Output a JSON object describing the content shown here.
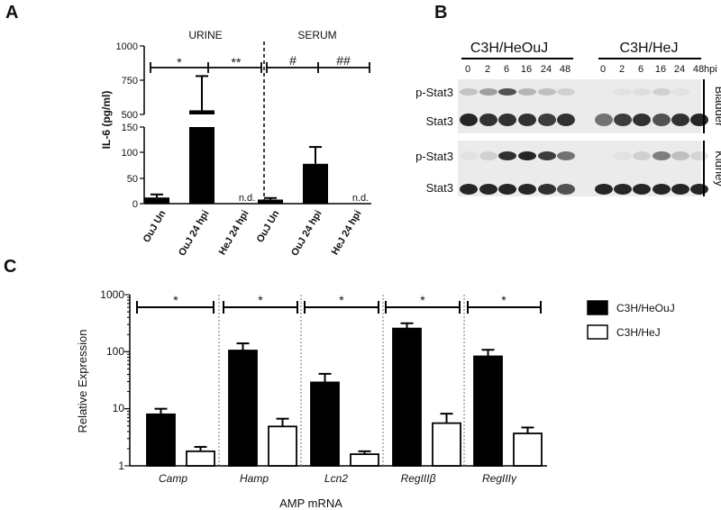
{
  "panels": {
    "a": "A",
    "b": "B",
    "c": "C"
  },
  "chart_data": [
    {
      "type": "bar",
      "panel": "A",
      "groups": [
        "URINE",
        "SERUM"
      ],
      "categories": [
        "OuJ Un",
        "OuJ 24 hpi",
        "HeJ 24 hpi",
        "OuJ Un",
        "OuJ 24 hpi",
        "HeJ 24 hpi"
      ],
      "values": [
        12,
        530,
        null,
        8,
        78,
        null
      ],
      "errors": [
        6,
        250,
        null,
        3,
        33,
        null
      ],
      "value_labels": [
        "",
        "",
        "n.d.",
        "",
        "",
        "n.d."
      ],
      "ylabel": "IL-6 (pg/ml)",
      "axis_break": [
        150,
        500
      ],
      "yticks_lower": [
        "0",
        "50",
        "100",
        "150"
      ],
      "yticks_upper": [
        "500",
        "750",
        "1000"
      ],
      "ylim": [
        0,
        1000
      ],
      "significance": [
        "*",
        "**",
        "#",
        "##"
      ]
    },
    {
      "type": "blot",
      "panel": "B",
      "strains": [
        "C3H/HeOuJ",
        "C3H/HeJ"
      ],
      "timepoints": [
        "0",
        "2",
        "6",
        "16",
        "24",
        "48"
      ],
      "unit": "hpi",
      "rows": [
        "p-Stat3",
        "Stat3",
        "p-Stat3",
        "Stat3"
      ],
      "tissues": [
        "Bladder",
        "Kidney"
      ]
    },
    {
      "type": "bar",
      "panel": "C",
      "categories": [
        "Camp",
        "Hamp",
        "Lcn2",
        "RegIIIβ",
        "RegIIIγ"
      ],
      "series": [
        {
          "name": "C3H/HeOuJ",
          "values": [
            8,
            105,
            29,
            255,
            83
          ],
          "errors": [
            2,
            35,
            12,
            60,
            25
          ],
          "color": "#000000"
        },
        {
          "name": "C3H/HeJ",
          "values": [
            1.8,
            4.9,
            1.6,
            5.6,
            3.7
          ],
          "errors": [
            0.35,
            1.8,
            0.2,
            2.6,
            1.0
          ],
          "color": "#ffffff"
        }
      ],
      "xlabel": "AMP mRNA",
      "ylabel": "Relative Expression",
      "yscale": "log",
      "ylim": [
        1,
        1000
      ],
      "yticks": [
        "1",
        "10",
        "100",
        "1000"
      ],
      "significance": [
        "*",
        "*",
        "*",
        "*",
        "*"
      ]
    }
  ]
}
